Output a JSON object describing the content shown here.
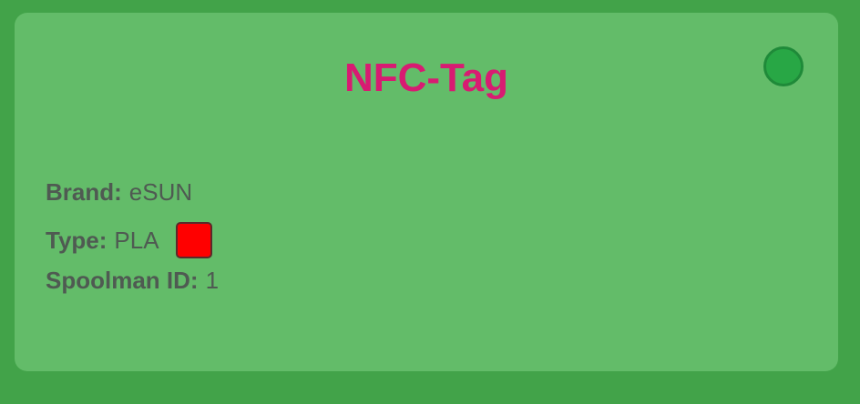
{
  "card": {
    "title": "NFC-Tag",
    "status_color": "#28a745"
  },
  "fields": {
    "brand_label": "Brand:",
    "brand_value": "eSUN",
    "type_label": "Type:",
    "type_value": "PLA",
    "filament_color": "#ff0000",
    "spoolman_label": "Spoolman ID:",
    "spoolman_value": "1"
  }
}
